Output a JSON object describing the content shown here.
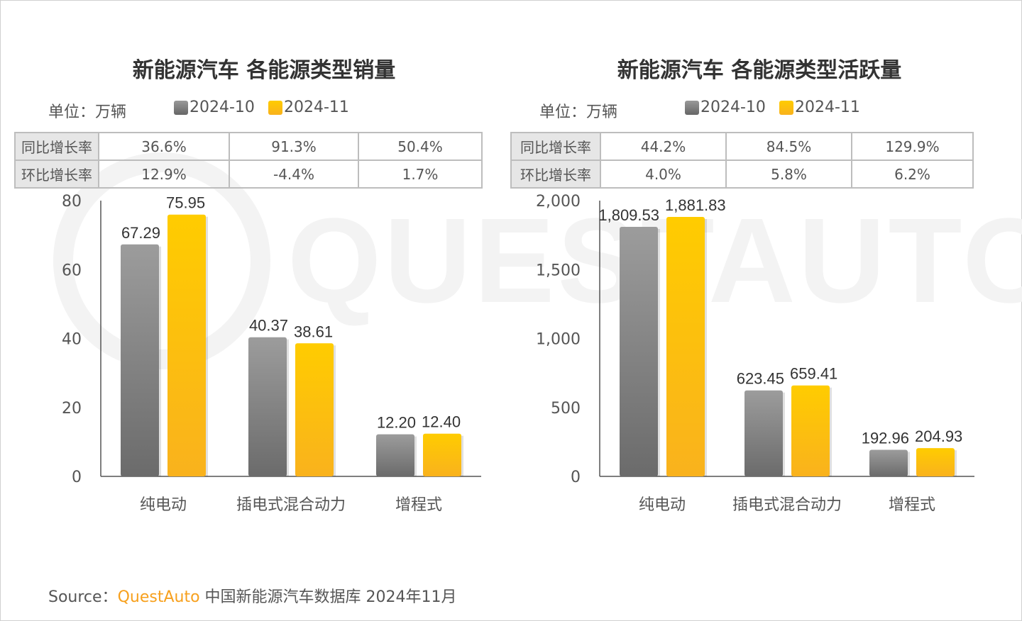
{
  "watermark": "QUESTAUTO",
  "colors": {
    "oct": "#7f7f7f",
    "nov": "#fcc10f",
    "axis": "#555555"
  },
  "legend": {
    "unit": "单位：万辆",
    "oct": "2024-10",
    "nov": "2024-11"
  },
  "tables": [
    {
      "rows": [
        {
          "label": "同比增长率",
          "values": [
            "36.6%",
            "91.3%",
            "50.4%"
          ]
        },
        {
          "label": "环比增长率",
          "values": [
            "12.9%",
            "-4.4%",
            "1.7%"
          ]
        }
      ]
    },
    {
      "rows": [
        {
          "label": "同比增长率",
          "values": [
            "44.2%",
            "84.5%",
            "129.9%"
          ]
        },
        {
          "label": "环比增长率",
          "values": [
            "4.0%",
            "5.8%",
            "6.2%"
          ]
        }
      ]
    }
  ],
  "chart_data": [
    {
      "type": "bar",
      "title": "新能源汽车 各能源类型销量",
      "ylabel": "万辆",
      "ylim": [
        0,
        80
      ],
      "yticks": [
        "0",
        "20",
        "40",
        "60",
        "80"
      ],
      "categories": [
        "纯电动",
        "插电式混合动力",
        "增程式"
      ],
      "series": [
        {
          "name": "2024-10",
          "values": [
            67.29,
            40.37,
            12.2
          ],
          "labels": [
            "67.29",
            "40.37",
            "12.20"
          ]
        },
        {
          "name": "2024-11",
          "values": [
            75.95,
            38.61,
            12.4
          ],
          "labels": [
            "75.95",
            "38.61",
            "12.40"
          ]
        }
      ],
      "legend": "top-left"
    },
    {
      "type": "bar",
      "title": "新能源汽车 各能源类型活跃量",
      "ylabel": "万辆",
      "ylim": [
        0,
        2000
      ],
      "yticks": [
        "0",
        "500",
        "1,000",
        "1,500",
        "2,000"
      ],
      "categories": [
        "纯电动",
        "插电式混合动力",
        "增程式"
      ],
      "series": [
        {
          "name": "2024-10",
          "values": [
            1809.53,
            623.45,
            192.96
          ],
          "labels": [
            "1,809.53",
            "623.45",
            "192.96"
          ]
        },
        {
          "name": "2024-11",
          "values": [
            1881.83,
            659.41,
            204.93
          ],
          "labels": [
            "1,881.83",
            "659.41",
            "204.93"
          ]
        }
      ],
      "legend": "top-left"
    }
  ],
  "source": {
    "prefix": "Source：",
    "brand": "QuestAuto",
    "text": " 中国新能源汽车数据库 2024年11月"
  }
}
